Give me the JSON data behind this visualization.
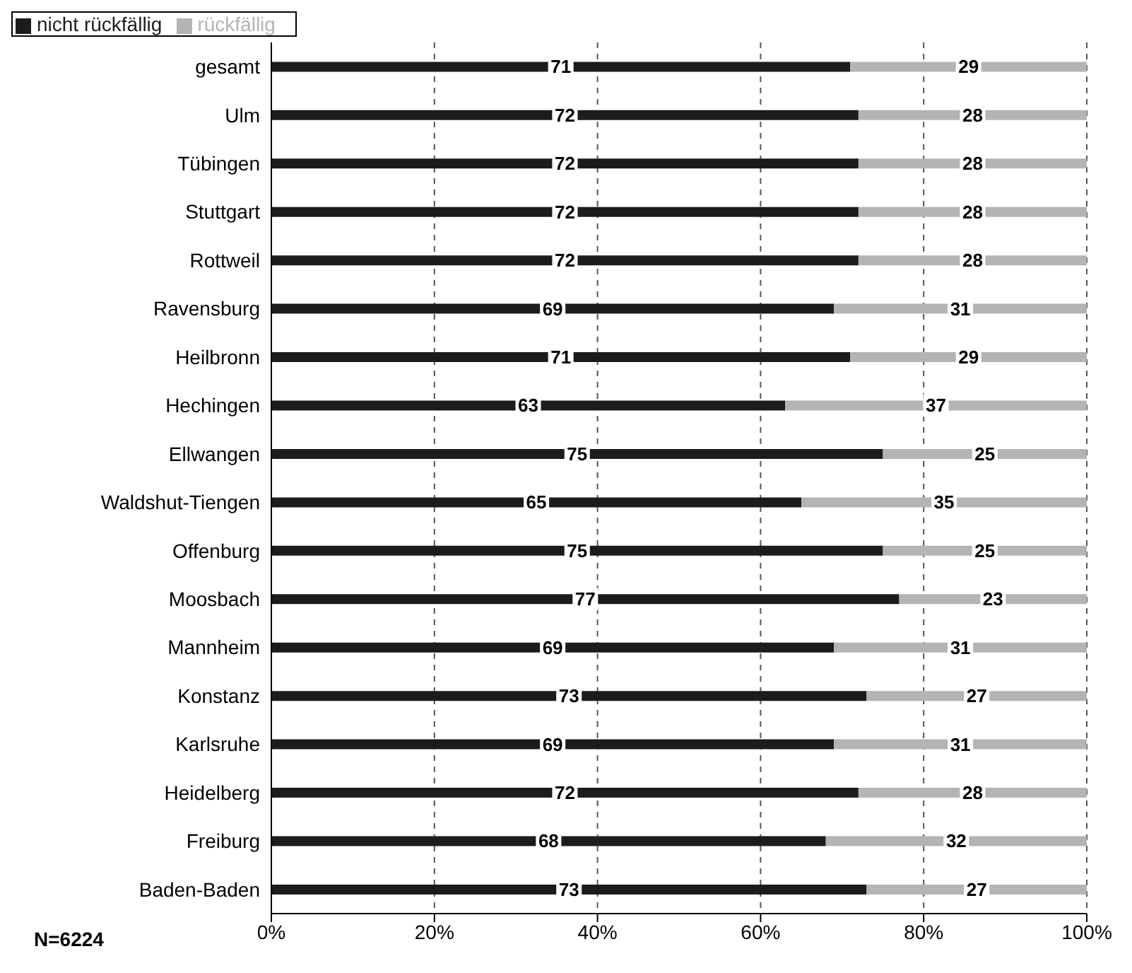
{
  "chart_data": {
    "type": "bar",
    "orientation": "horizontal",
    "stacked": true,
    "data_labels": true,
    "grid": "x",
    "legend": "top left",
    "categories": [
      "gesamt",
      "Ulm",
      "Tübingen",
      "Stuttgart",
      "Rottweil",
      "Ravensburg",
      "Heilbronn",
      "Hechingen",
      "Ellwangen",
      "Waldshut-Tiengen",
      "Offenburg",
      "Moosbach",
      "Mannheim",
      "Konstanz",
      "Karlsruhe",
      "Heidelberg",
      "Freiburg",
      "Baden-Baden"
    ],
    "series": [
      {
        "name": "nicht rückfällig",
        "color": "#1c1c1c",
        "values": [
          71,
          72,
          72,
          72,
          72,
          69,
          71,
          63,
          75,
          65,
          75,
          77,
          69,
          73,
          69,
          72,
          68,
          73
        ]
      },
      {
        "name": "rückfällig",
        "color": "#b4b4b4",
        "values": [
          29,
          28,
          28,
          28,
          28,
          31,
          29,
          37,
          25,
          35,
          25,
          23,
          31,
          27,
          31,
          28,
          32,
          27
        ]
      }
    ],
    "xlim": [
      0,
      100
    ],
    "xticks": [
      {
        "value": 0,
        "label": "0%"
      },
      {
        "value": 20,
        "label": "20%"
      },
      {
        "value": 40,
        "label": "40%"
      },
      {
        "value": 60,
        "label": "60%"
      },
      {
        "value": 80,
        "label": "80%"
      },
      {
        "value": 100,
        "label": "100%"
      }
    ],
    "annotations": [
      "N=6224"
    ]
  }
}
